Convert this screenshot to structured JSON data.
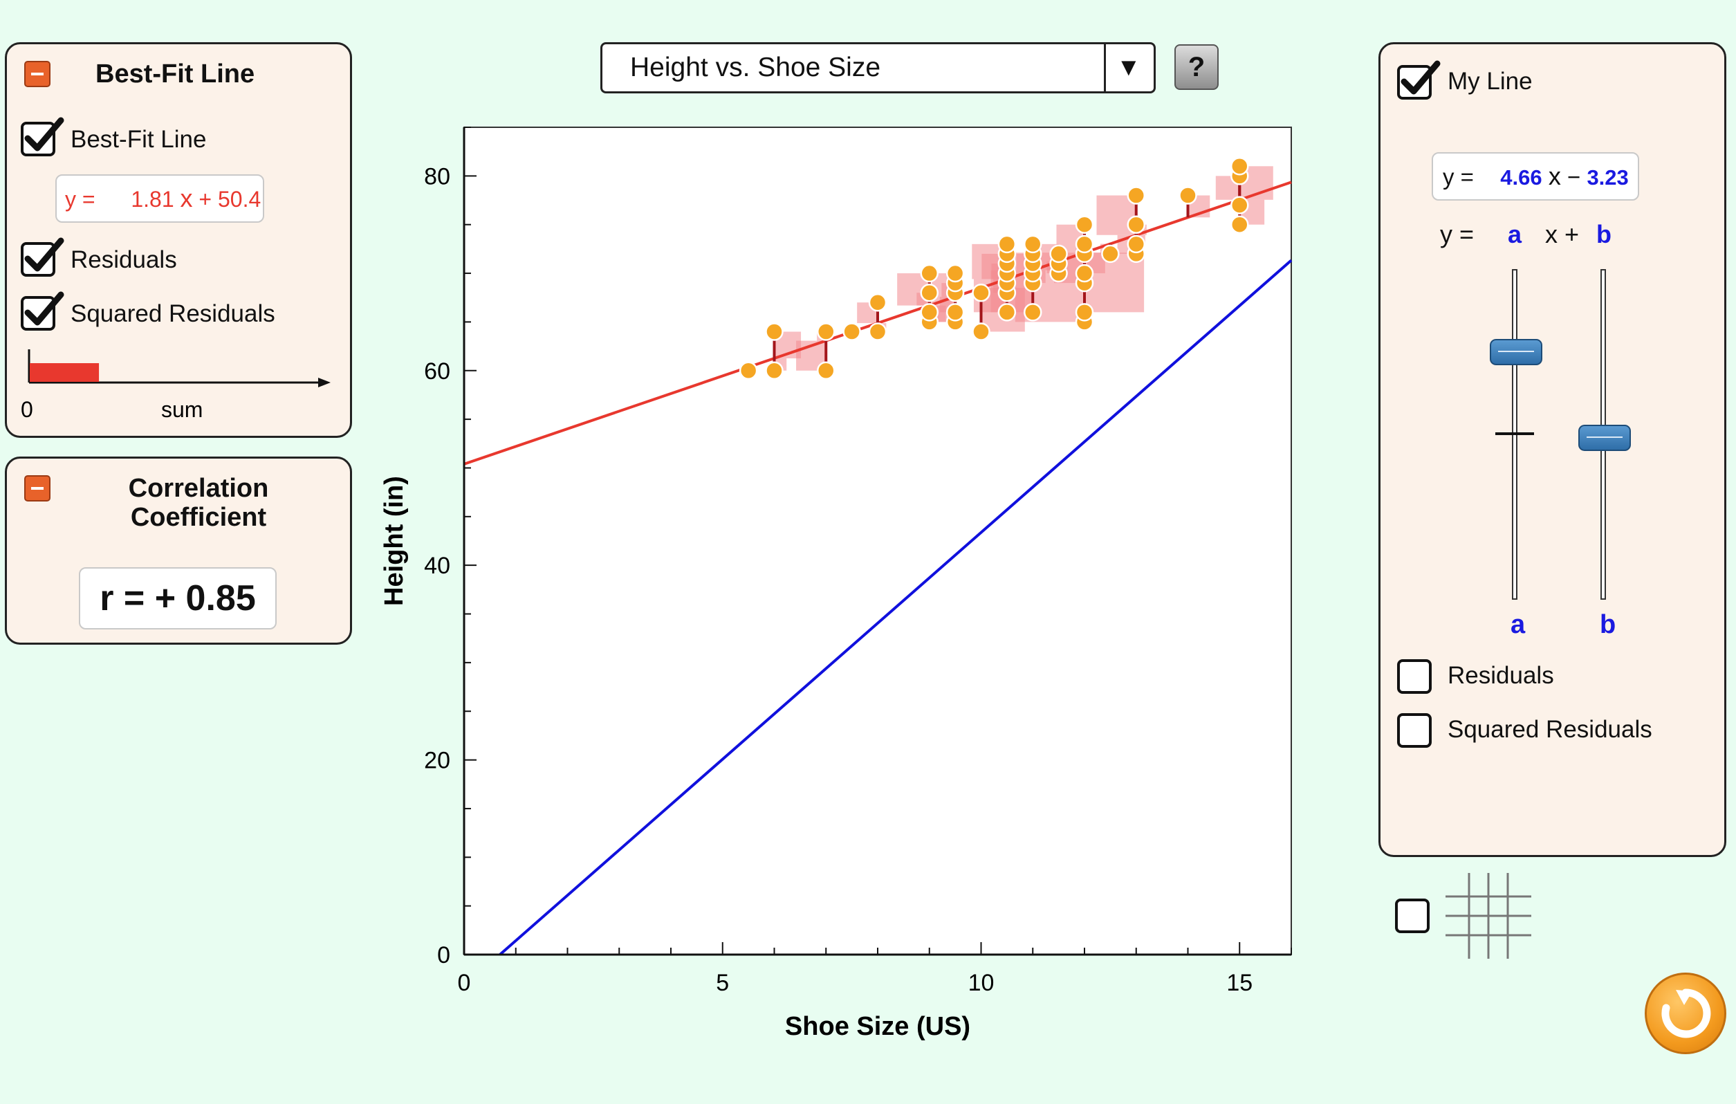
{
  "dataset_select": {
    "value": "Height vs. Shoe Size",
    "arrow": "▼"
  },
  "help_button": {
    "label": "?"
  },
  "best_fit_panel": {
    "title": "Best-Fit Line",
    "best_fit_checkbox": {
      "label": "Best-Fit Line",
      "checked": true
    },
    "equation": {
      "prefix": "y =",
      "slope": "1.81",
      "x_text": "x",
      "sign": "+",
      "intercept": "50.4"
    },
    "residuals_checkbox": {
      "label": "Residuals",
      "checked": true
    },
    "squared_residuals_checkbox": {
      "label": "Squared Residuals",
      "checked": true
    },
    "sum_bar": {
      "zero_label": "0",
      "sum_label": "sum",
      "fill_fraction": 0.24,
      "color": "#e8382e"
    }
  },
  "correlation_panel": {
    "title_line1": "Correlation",
    "title_line2": "Coefficient",
    "value_text": "r = + 0.85"
  },
  "my_line_panel": {
    "my_line_checkbox": {
      "label": "My Line",
      "checked": true
    },
    "equation": {
      "prefix": "y =",
      "a": "4.66",
      "x_text": "x",
      "sign": "−",
      "b": "3.23"
    },
    "param_row": {
      "prefix": "y =",
      "a": "a",
      "x_plus": "x +",
      "b": "b"
    },
    "slider_a_label": "a",
    "slider_b_label": "b",
    "slider_a_fraction": 0.75,
    "slider_b_fraction": 0.49,
    "residuals_checkbox": {
      "label": "Residuals",
      "checked": false
    },
    "squared_residuals_checkbox": {
      "label": "Squared Residuals",
      "checked": false
    }
  },
  "grid_toggle": {
    "checked": false
  },
  "colors": {
    "best_fit_line": "#e8382e",
    "my_line": "#1010dd",
    "point_fill": "#f5a623",
    "point_stroke": "#ffffff",
    "residual_line": "#a3151b",
    "square_fill": "#f28a8f",
    "accent_blue": "#1a1ae0",
    "panel_bg": "#fcf2e9",
    "page_bg": "#e8fdf1"
  },
  "chart_data": {
    "type": "scatter",
    "title": "",
    "xlabel": "Shoe Size (US)",
    "ylabel": "Height (in)",
    "xlim": [
      0,
      16
    ],
    "ylim": [
      0,
      85
    ],
    "x_ticks": [
      0,
      5,
      10,
      15
    ],
    "y_ticks": [
      0,
      20,
      40,
      60,
      80
    ],
    "grid": false,
    "points": [
      [
        5.5,
        60
      ],
      [
        6,
        60
      ],
      [
        6,
        64
      ],
      [
        7,
        60
      ],
      [
        7,
        64
      ],
      [
        7.5,
        64
      ],
      [
        8,
        64
      ],
      [
        8,
        67
      ],
      [
        9,
        65
      ],
      [
        9,
        66
      ],
      [
        9,
        68
      ],
      [
        9,
        70
      ],
      [
        9.5,
        65
      ],
      [
        9.5,
        66
      ],
      [
        9.5,
        68
      ],
      [
        9.5,
        69
      ],
      [
        9.5,
        70
      ],
      [
        10,
        64
      ],
      [
        10,
        68
      ],
      [
        10.5,
        66
      ],
      [
        10.5,
        68
      ],
      [
        10.5,
        69
      ],
      [
        10.5,
        70
      ],
      [
        10.5,
        71
      ],
      [
        10.5,
        72
      ],
      [
        10.5,
        73
      ],
      [
        11,
        66
      ],
      [
        11,
        69
      ],
      [
        11,
        70
      ],
      [
        11,
        71
      ],
      [
        11,
        72
      ],
      [
        11,
        73
      ],
      [
        11.5,
        70
      ],
      [
        11.5,
        71
      ],
      [
        11.5,
        72
      ],
      [
        12,
        65
      ],
      [
        12,
        66
      ],
      [
        12,
        69
      ],
      [
        12,
        70
      ],
      [
        12,
        72
      ],
      [
        12,
        73
      ],
      [
        12,
        75
      ],
      [
        12.5,
        72
      ],
      [
        13,
        72
      ],
      [
        13,
        73
      ],
      [
        13,
        75
      ],
      [
        13,
        78
      ],
      [
        14,
        78
      ],
      [
        15,
        75
      ],
      [
        15,
        77
      ],
      [
        15,
        80
      ],
      [
        15,
        81
      ]
    ],
    "lines": [
      {
        "name": "Best-Fit Line",
        "slope": 1.81,
        "intercept": 50.4
      },
      {
        "name": "My Line",
        "slope": 4.66,
        "intercept": -3.23
      }
    ]
  }
}
